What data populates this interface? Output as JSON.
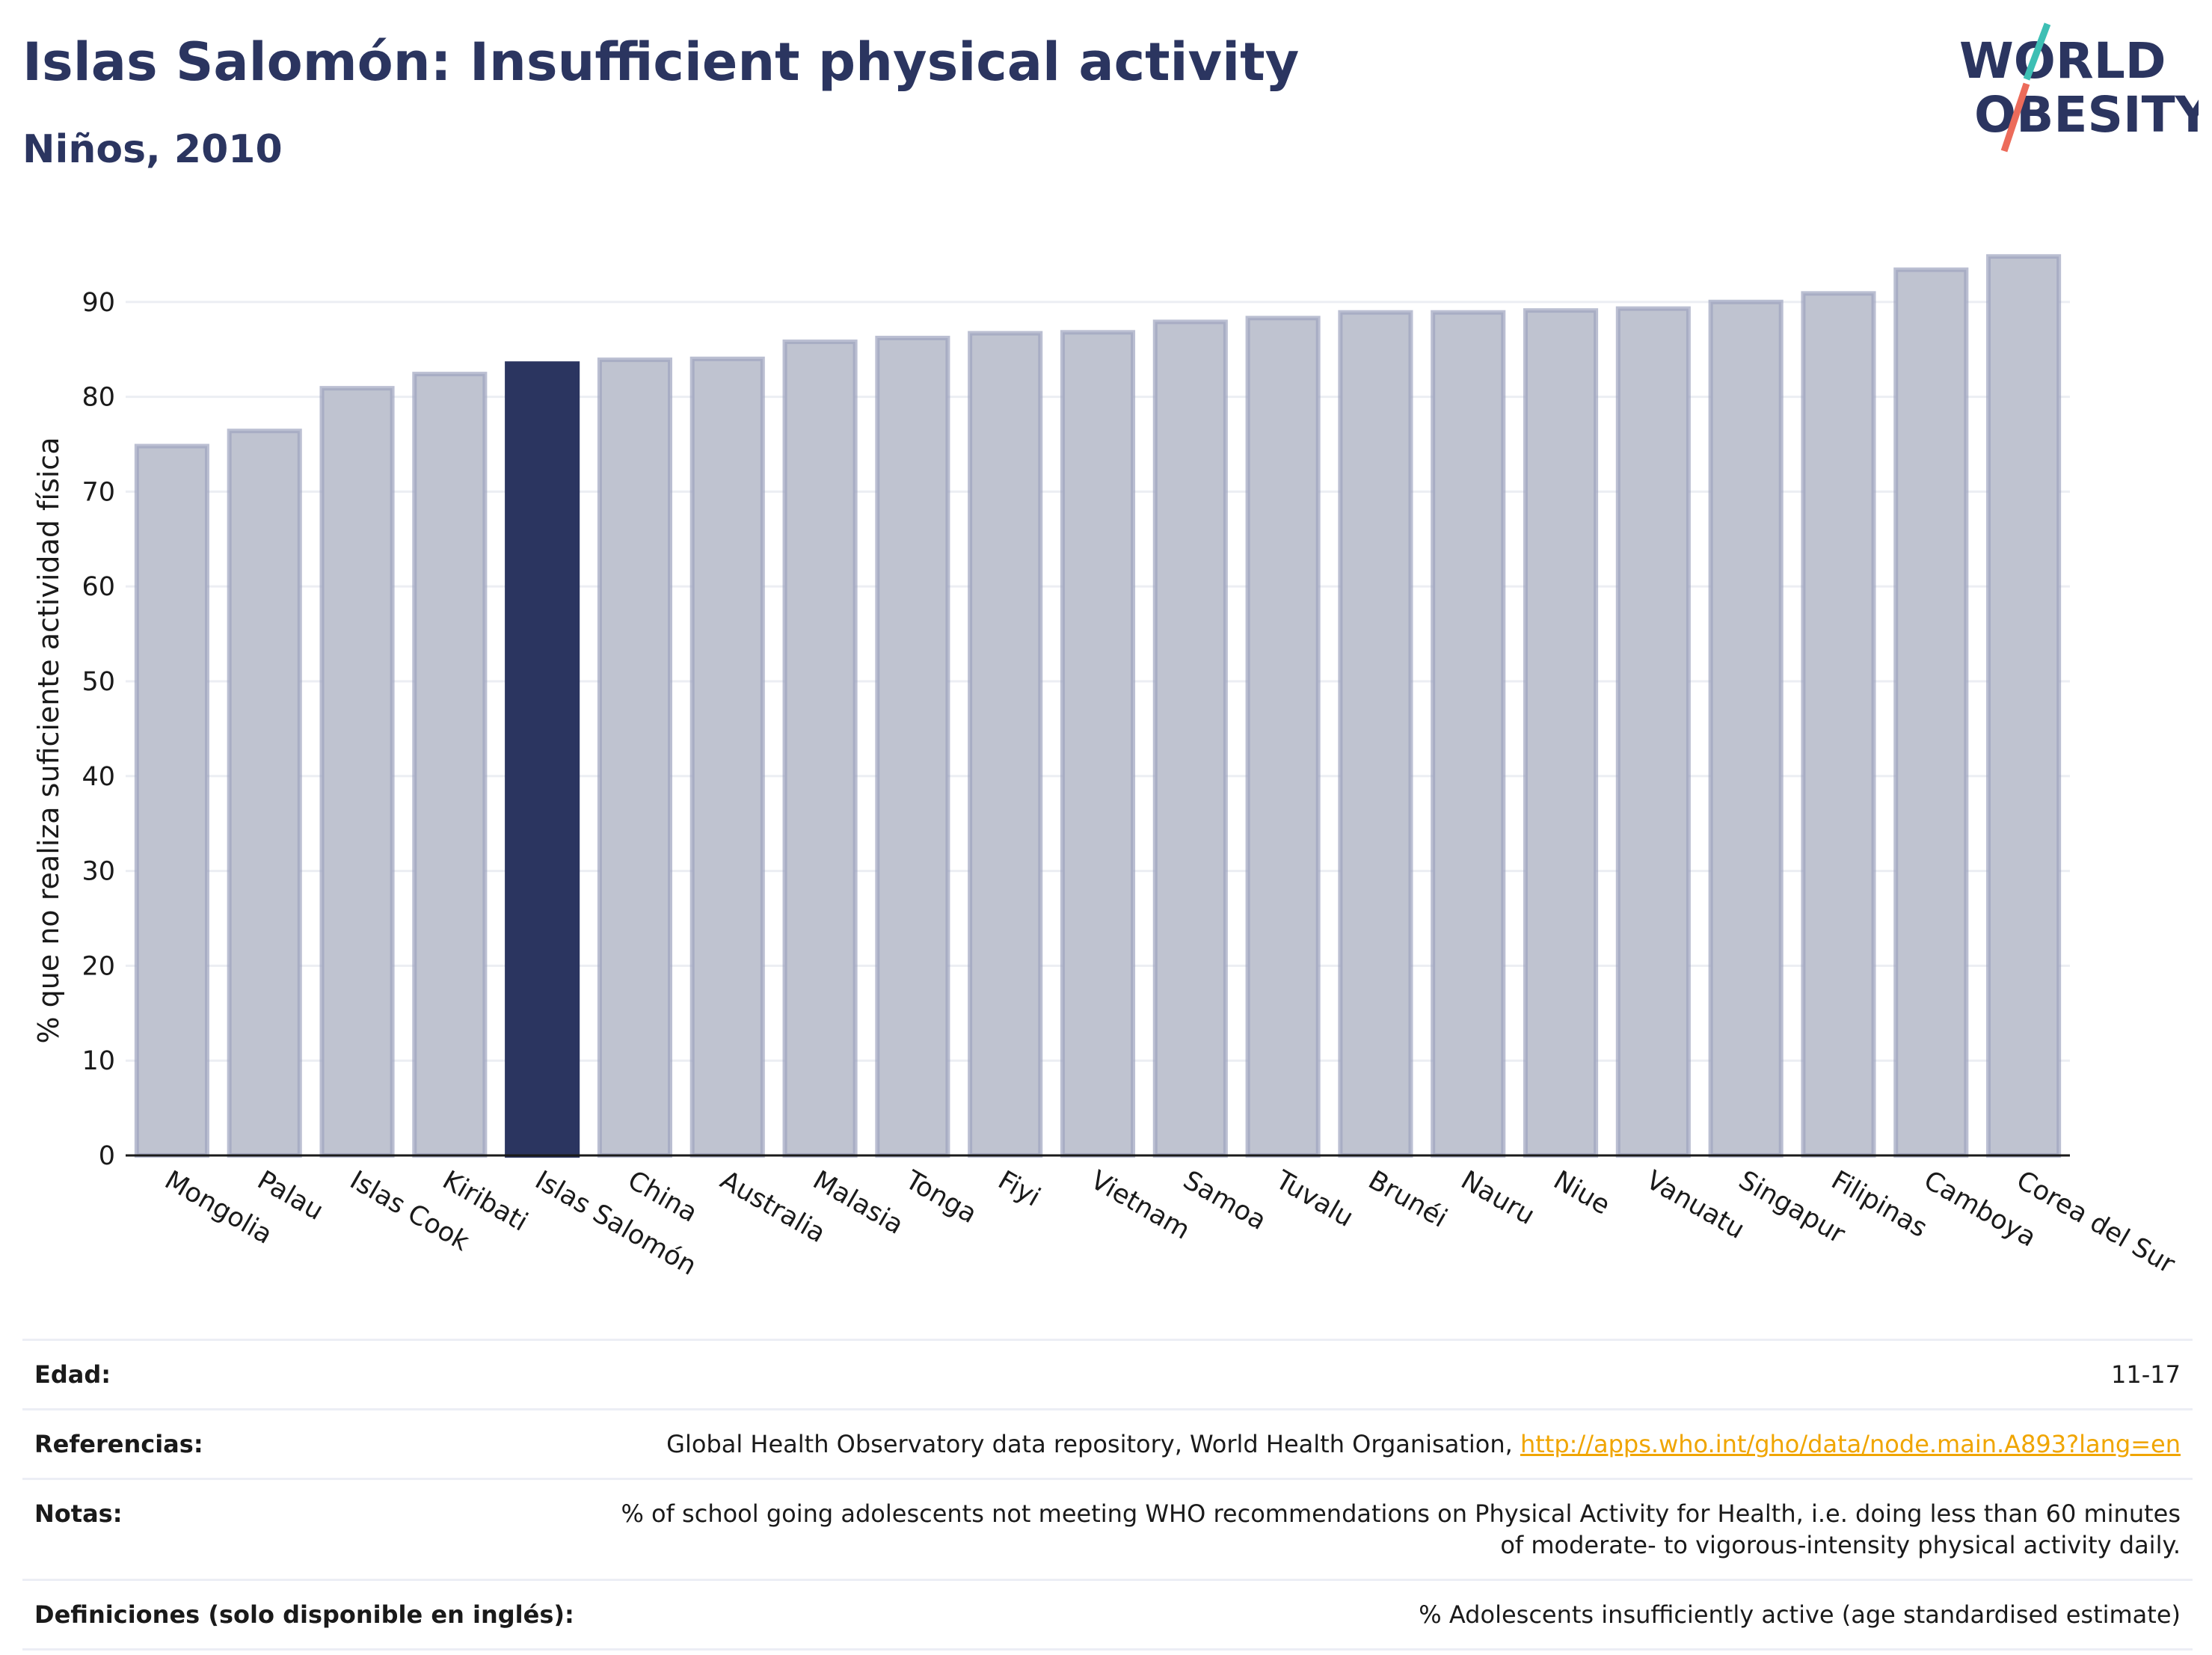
{
  "header": {
    "title": "Islas Salomón: Insufficient physical activity",
    "subtitle": "Niños, 2010"
  },
  "logo": {
    "line1": "WORLD",
    "line2": "OBESITY"
  },
  "colors": {
    "highlight": "#2b3560",
    "bar": "#bfc3d0",
    "bar_edge": "#9ea4bf",
    "teal": "#3dbfb4",
    "coral": "#ec6b5a"
  },
  "chart_data": {
    "type": "bar",
    "categories": [
      "Mongolia",
      "Palau",
      "Islas Cook",
      "Kiribati",
      "Islas Salomón",
      "China",
      "Australia",
      "Malasia",
      "Tonga",
      "Fiyi",
      "Vietnam",
      "Samoa",
      "Tuvalu",
      "Brunéi",
      "Nauru",
      "Niue",
      "Vanuatu",
      "Singapur",
      "Filipinas",
      "Camboya",
      "Corea del Sur"
    ],
    "values": [
      74.8,
      76.4,
      80.9,
      82.4,
      83.5,
      83.9,
      84.0,
      85.8,
      86.2,
      86.7,
      86.8,
      87.9,
      88.3,
      88.9,
      88.9,
      89.1,
      89.3,
      90.0,
      90.9,
      93.4,
      94.8
    ],
    "highlight": "Islas Salomón",
    "ylabel": "% que no realiza suficiente actividad física",
    "xlabel": "",
    "ylim": [
      0,
      97
    ],
    "yticks": [
      0,
      10,
      20,
      30,
      40,
      50,
      60,
      70,
      80,
      90
    ],
    "grid": true
  },
  "info": {
    "rows": [
      {
        "key": "Edad:",
        "value": "11-17"
      },
      {
        "key": "Referencias:",
        "value": "Global Health Observatory data repository, World Health Organisation, ",
        "link": "http://apps.who.int/gho/data/node.main.A893?lang=en"
      },
      {
        "key": "Notas:",
        "value": "% of school going adolescents not meeting WHO recommendations on Physical Activity for Health, i.e. doing less than 60 minutes of moderate- to vigorous-intensity physical activity daily."
      },
      {
        "key": "Definiciones (solo disponible en inglés):",
        "value": "% Adolescents insufficiently active (age standardised estimate)"
      }
    ]
  }
}
